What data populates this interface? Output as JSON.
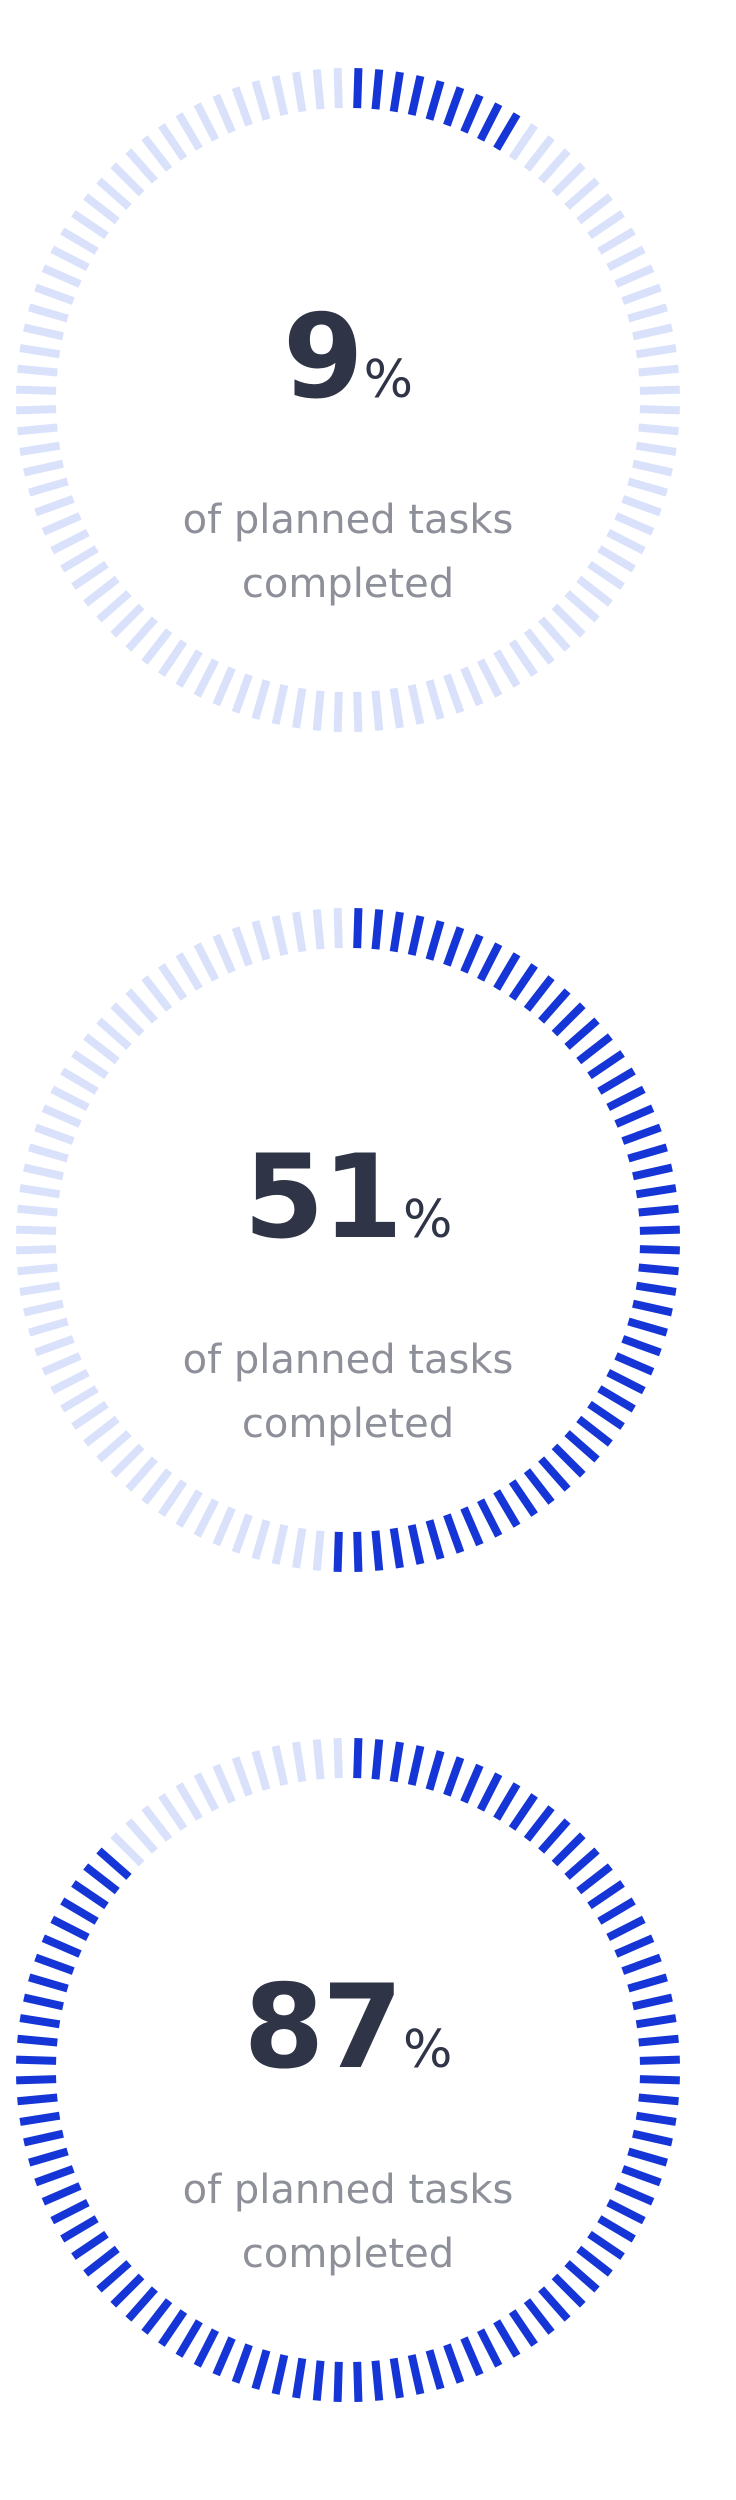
{
  "colors": {
    "track": "#d9e1fb",
    "progress": "#1535d6",
    "value_text": "#2f3446",
    "caption_text": "#8d8f99"
  },
  "gauges": [
    {
      "value": "9",
      "unit": "%",
      "caption_line1": "of planned tasks",
      "caption_line2": "completed",
      "progress_fraction": 0.09
    },
    {
      "value": "51",
      "unit": "%",
      "caption_line1": "of planned tasks",
      "caption_line2": "completed",
      "progress_fraction": 0.51
    },
    {
      "value": "87",
      "unit": "%",
      "caption_line1": "of planned tasks",
      "caption_line2": "completed",
      "progress_fraction": 0.87
    }
  ]
}
